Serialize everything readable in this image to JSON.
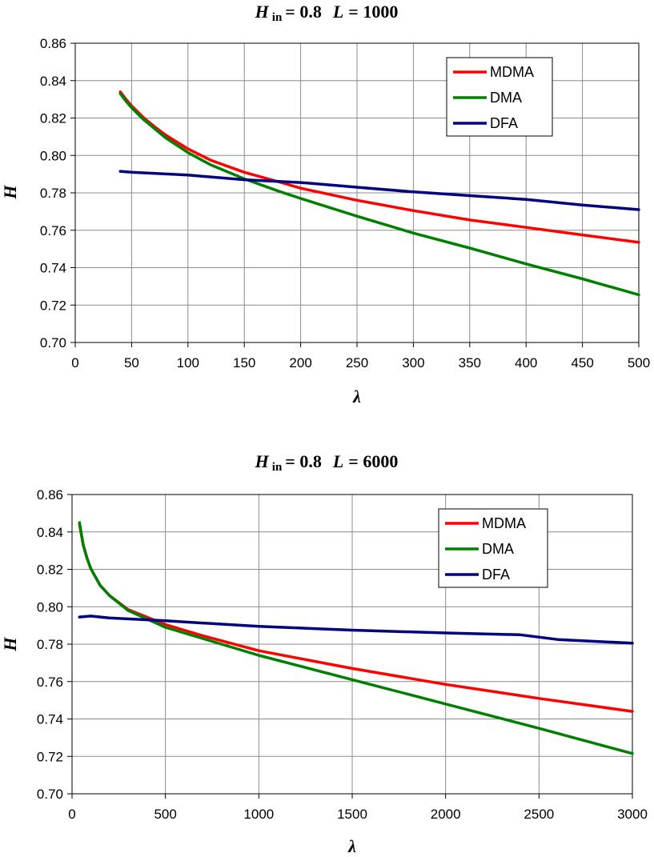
{
  "chart_data": [
    {
      "type": "line",
      "title": {
        "symbol": "H",
        "subscript": "in",
        "rest": "= 0.8",
        "L_symbol": "L",
        "L_rest": "= 1000"
      },
      "xlabel": "λ",
      "ylabel": "H",
      "xlim": [
        0,
        500
      ],
      "ylim": [
        0.7,
        0.86
      ],
      "x_ticks": [
        "0",
        "50",
        "100",
        "150",
        "200",
        "250",
        "300",
        "350",
        "400",
        "450",
        "500"
      ],
      "y_ticks": [
        "0.70",
        "0.72",
        "0.74",
        "0.76",
        "0.78",
        "0.80",
        "0.82",
        "0.84",
        "0.86"
      ],
      "grid": true,
      "legend_position": "top-right",
      "series": [
        {
          "name": "MDMA",
          "color": "#ff0000",
          "x": [
            40,
            45,
            50,
            60,
            70,
            80,
            100,
            120,
            150,
            180,
            200,
            250,
            300,
            350,
            400,
            450,
            500
          ],
          "y": [
            0.834,
            0.83,
            0.8265,
            0.8205,
            0.8155,
            0.811,
            0.8035,
            0.7975,
            0.791,
            0.786,
            0.7825,
            0.776,
            0.7705,
            0.7655,
            0.7615,
            0.7575,
            0.7535
          ]
        },
        {
          "name": "DMA",
          "color": "#008000",
          "x": [
            40,
            45,
            50,
            60,
            70,
            80,
            100,
            120,
            150,
            180,
            200,
            250,
            300,
            350,
            400,
            450,
            500
          ],
          "y": [
            0.833,
            0.829,
            0.8255,
            0.8195,
            0.8145,
            0.8095,
            0.8015,
            0.795,
            0.7875,
            0.781,
            0.777,
            0.7675,
            0.7585,
            0.7505,
            0.742,
            0.734,
            0.7255
          ]
        },
        {
          "name": "DFA",
          "color": "#000080",
          "x": [
            40,
            50,
            100,
            150,
            200,
            250,
            300,
            350,
            400,
            450,
            500
          ],
          "y": [
            0.7915,
            0.791,
            0.7895,
            0.787,
            0.7855,
            0.783,
            0.7805,
            0.7785,
            0.7765,
            0.7735,
            0.771
          ]
        }
      ]
    },
    {
      "type": "line",
      "title": {
        "symbol": "H",
        "subscript": "in",
        "rest": "= 0.8",
        "L_symbol": "L",
        "L_rest": "= 6000"
      },
      "xlabel": "λ",
      "ylabel": "H",
      "xlim": [
        0,
        3000
      ],
      "ylim": [
        0.7,
        0.86
      ],
      "x_ticks": [
        "0",
        "500",
        "1000",
        "1500",
        "2000",
        "2500",
        "3000"
      ],
      "y_ticks": [
        "0.70",
        "0.72",
        "0.74",
        "0.76",
        "0.78",
        "0.80",
        "0.82",
        "0.84",
        "0.86"
      ],
      "grid": true,
      "legend_position": "top-right",
      "series": [
        {
          "name": "MDMA",
          "color": "#ff0000",
          "x": [
            40,
            60,
            80,
            100,
            150,
            200,
            300,
            400,
            500,
            700,
            1000,
            1500,
            2000,
            2500,
            3000
          ],
          "y": [
            0.844,
            0.833,
            0.826,
            0.8205,
            0.8115,
            0.806,
            0.7985,
            0.7945,
            0.7905,
            0.7845,
            0.7765,
            0.767,
            0.7585,
            0.751,
            0.744
          ]
        },
        {
          "name": "DMA",
          "color": "#008000",
          "x": [
            40,
            60,
            80,
            100,
            150,
            200,
            300,
            400,
            500,
            700,
            1000,
            1500,
            2000,
            2500,
            3000
          ],
          "y": [
            0.845,
            0.833,
            0.826,
            0.8205,
            0.8115,
            0.806,
            0.798,
            0.7935,
            0.789,
            0.783,
            0.774,
            0.761,
            0.748,
            0.735,
            0.7215
          ]
        },
        {
          "name": "DFA",
          "color": "#000080",
          "x": [
            40,
            100,
            200,
            500,
            1000,
            1500,
            2000,
            2400,
            2600,
            3000
          ],
          "y": [
            0.7945,
            0.795,
            0.794,
            0.7925,
            0.7895,
            0.7875,
            0.786,
            0.785,
            0.7825,
            0.7805
          ]
        }
      ]
    }
  ]
}
